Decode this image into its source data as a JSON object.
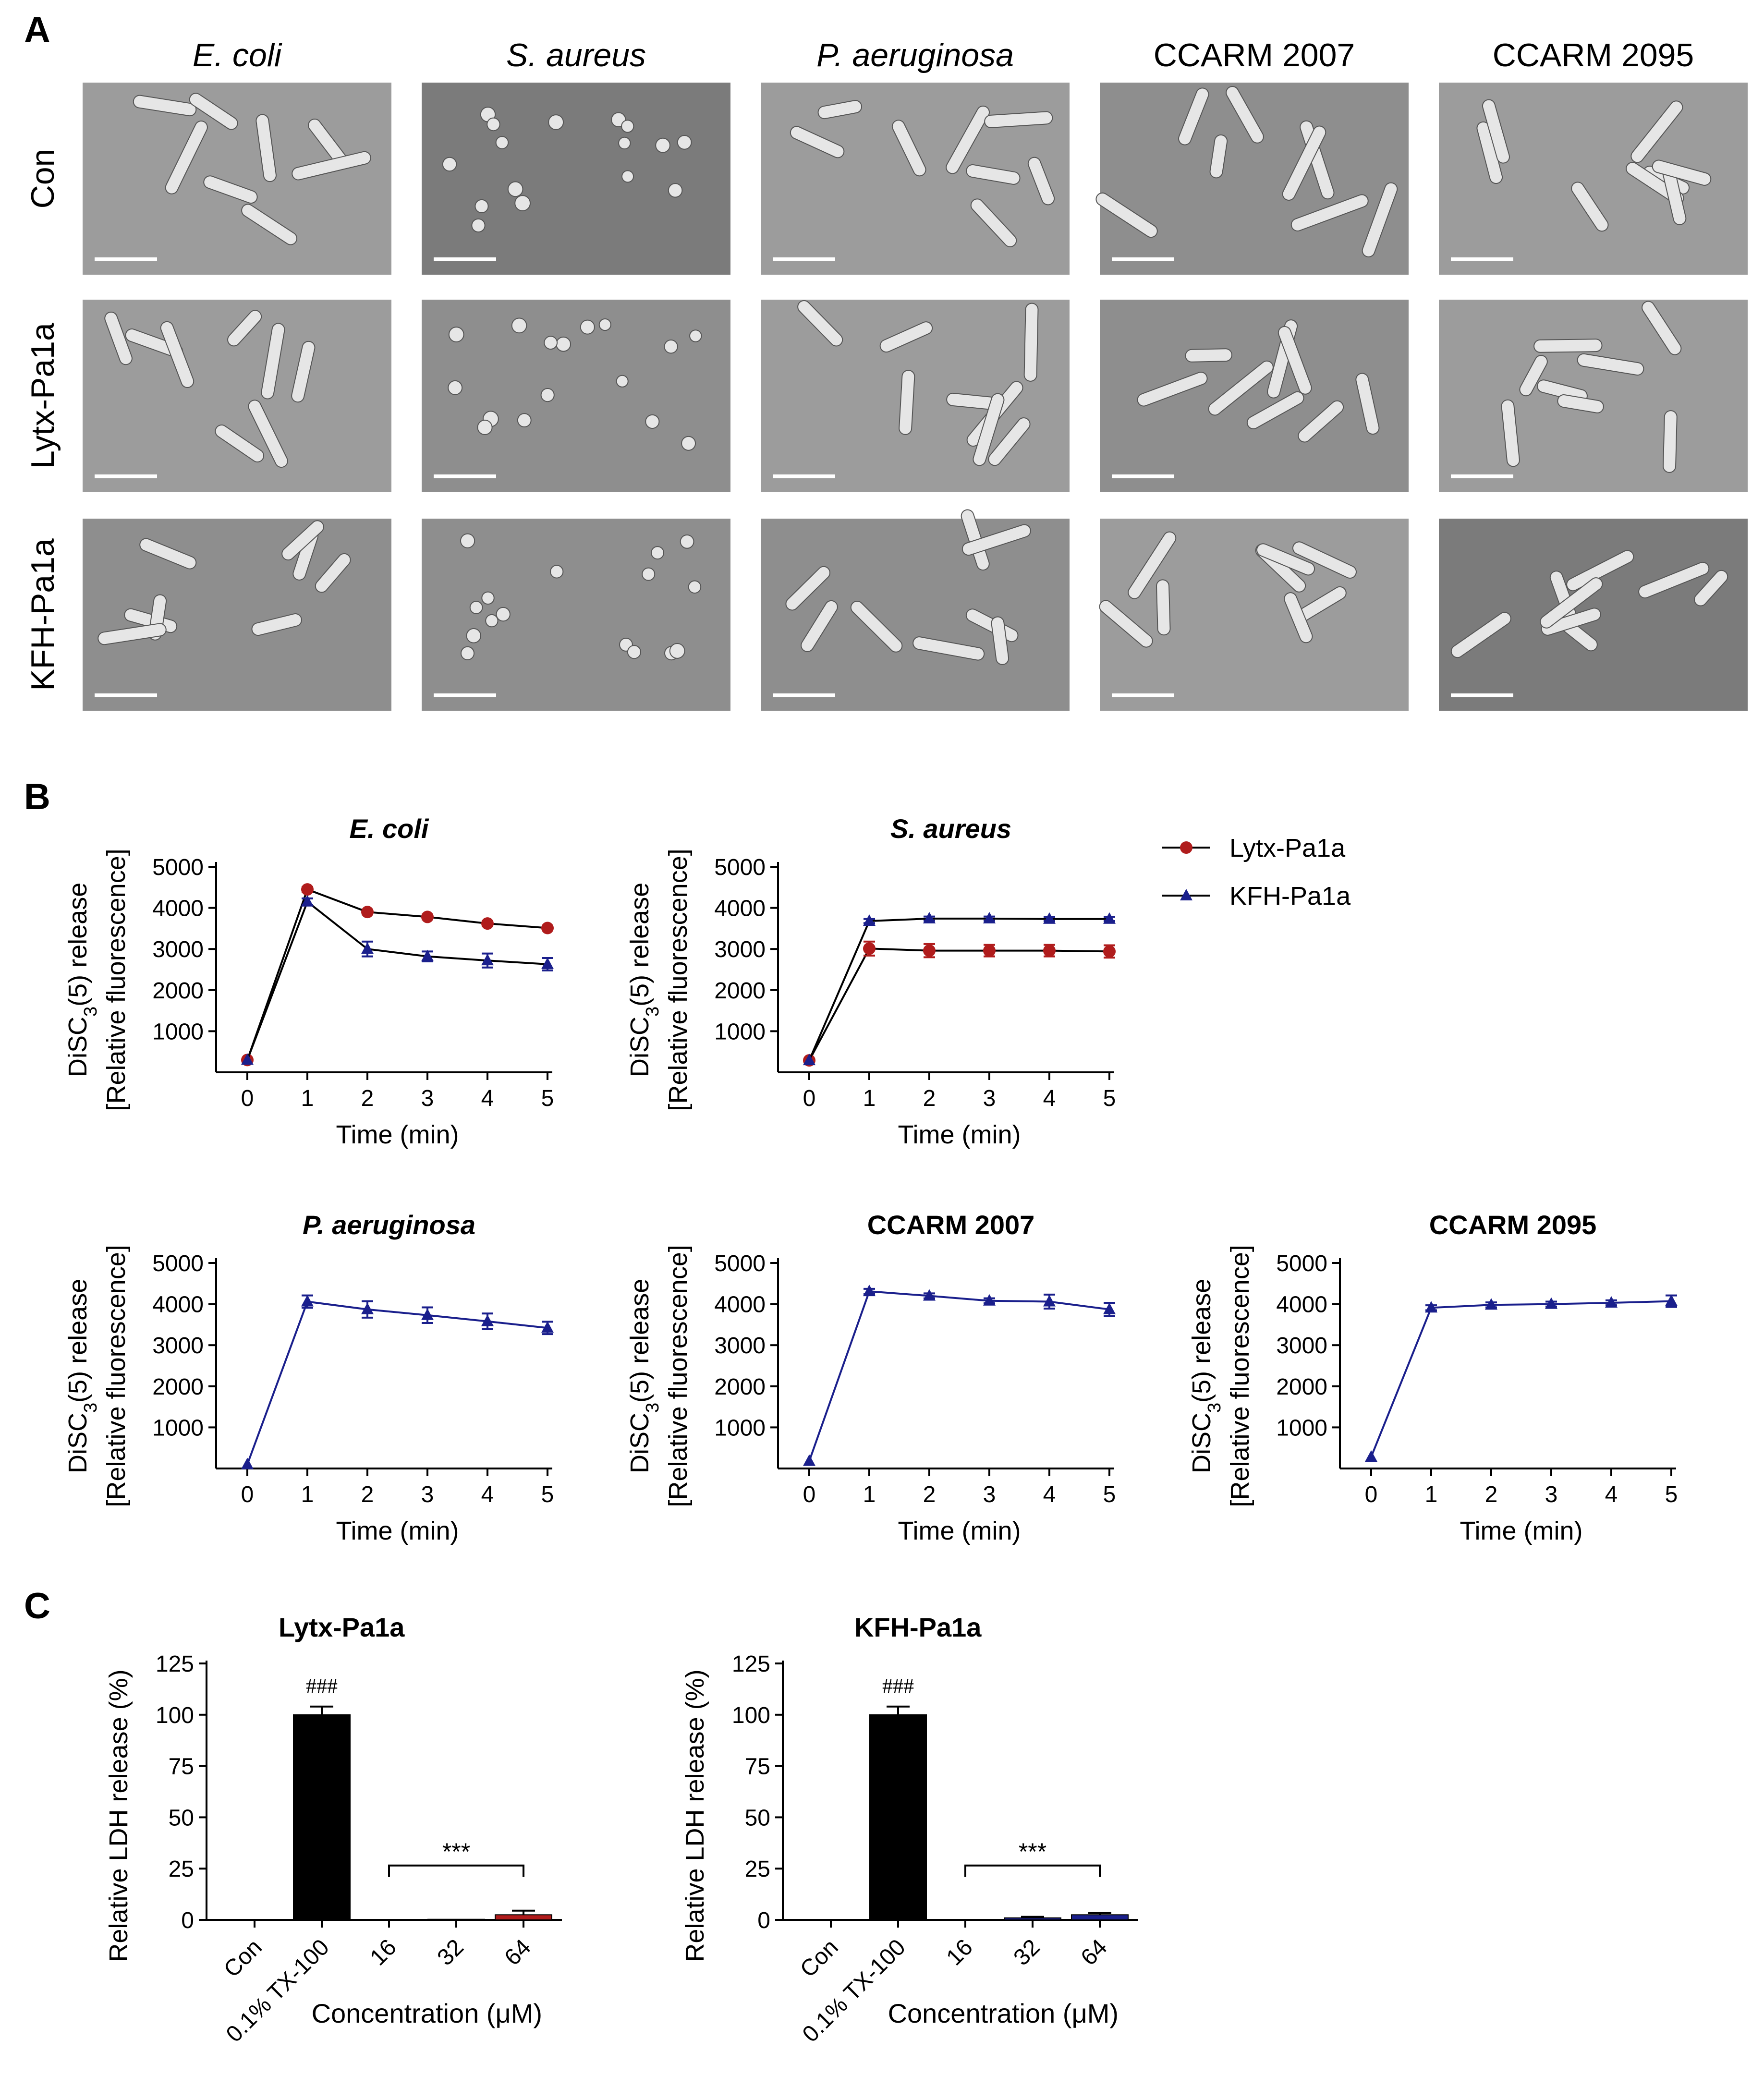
{
  "panel_letters": {
    "a": "A",
    "b": "B",
    "c": "C"
  },
  "colors": {
    "lytx": "#b01c1c",
    "kfh": "#1a1f8c",
    "black": "#000000",
    "sem_light": "#9c9c9c",
    "sem_mid": "#8e8e8e",
    "sem_dark": "#7b7b7b",
    "cell": "#e6e6e6",
    "scale_bar": "#ffffff"
  },
  "panel_a": {
    "columns": [
      {
        "label": "E. coli",
        "italic": true
      },
      {
        "label": "S. aureus",
        "italic": true
      },
      {
        "label": "P. aeruginosa",
        "italic": true
      },
      {
        "label": "CCARM 2007",
        "italic": false
      },
      {
        "label": "CCARM 2095",
        "italic": false
      }
    ],
    "rows": [
      "Con",
      "Lytx-Pa1a",
      "KFH-Pa1a"
    ],
    "tile_tone": [
      [
        "sem_light",
        "sem_dark",
        "sem_light",
        "sem_mid",
        "sem_light"
      ],
      [
        "sem_light",
        "sem_mid",
        "sem_light",
        "sem_mid",
        "sem_light"
      ],
      [
        "sem_mid",
        "sem_mid",
        "sem_mid",
        "sem_light",
        "sem_dark"
      ]
    ],
    "morphology": [
      [
        "rod",
        "coccus",
        "rod",
        "rod",
        "rod"
      ],
      [
        "rod",
        "coccus",
        "rod",
        "rod",
        "rod"
      ],
      [
        "rod",
        "coccus",
        "rod",
        "rod",
        "rod"
      ]
    ]
  },
  "legend": [
    {
      "label": "Lytx-Pa1a",
      "marker": "circle",
      "color_key": "lytx"
    },
    {
      "label": "KFH-Pa1a",
      "marker": "triangle",
      "color_key": "kfh"
    }
  ],
  "chart_data": [
    {
      "type": "line",
      "title": "E. coli",
      "italic_title": true,
      "xlabel": "Time (min)",
      "ylabel_line1": "DiSC3(5) release",
      "ylabel_line2": "[Relative fluorescence]",
      "x": [
        0,
        1,
        2,
        3,
        4,
        5
      ],
      "xlim": [
        0,
        5
      ],
      "ylim": [
        0,
        5000
      ],
      "yticks": [
        1000,
        2000,
        3000,
        4000,
        5000
      ],
      "series": [
        {
          "name": "Lytx-Pa1a",
          "marker": "circle",
          "color_key": "lytx",
          "values": [
            300,
            4450,
            3900,
            3780,
            3620,
            3510
          ],
          "errors": [
            0,
            60,
            60,
            60,
            60,
            60
          ]
        },
        {
          "name": "KFH-Pa1a",
          "marker": "triangle",
          "color_key": "kfh",
          "values": [
            300,
            4150,
            3000,
            2820,
            2720,
            2630
          ],
          "errors": [
            0,
            80,
            180,
            120,
            170,
            150
          ]
        }
      ]
    },
    {
      "type": "line",
      "title": "S. aureus",
      "italic_title": true,
      "xlabel": "Time (min)",
      "ylabel_line1": "DiSC3(5) release",
      "ylabel_line2": "[Relative fluorescence]",
      "x": [
        0,
        1,
        2,
        3,
        4,
        5
      ],
      "xlim": [
        0,
        5
      ],
      "ylim": [
        0,
        5000
      ],
      "yticks": [
        1000,
        2000,
        3000,
        4000,
        5000
      ],
      "series": [
        {
          "name": "Lytx-Pa1a",
          "marker": "circle",
          "color_key": "lytx",
          "values": [
            290,
            3010,
            2960,
            2960,
            2960,
            2940
          ],
          "errors": [
            0,
            170,
            160,
            140,
            140,
            150
          ]
        },
        {
          "name": "KFH-Pa1a",
          "marker": "triangle",
          "color_key": "kfh",
          "values": [
            290,
            3680,
            3740,
            3740,
            3730,
            3730
          ],
          "errors": [
            0,
            50,
            50,
            50,
            50,
            50
          ]
        }
      ]
    },
    {
      "type": "line",
      "title": "P. aeruginosa",
      "italic_title": true,
      "xlabel": "Time (min)",
      "ylabel_line1": "DiSC3(5) release",
      "ylabel_line2": "[Relative fluorescence]",
      "x": [
        0,
        1,
        2,
        3,
        4,
        5
      ],
      "xlim": [
        0,
        5
      ],
      "ylim": [
        0,
        5000
      ],
      "yticks": [
        1000,
        2000,
        3000,
        4000,
        5000
      ],
      "series": [
        {
          "name": "KFH-Pa1a",
          "marker": "triangle",
          "color_key": "kfh",
          "values": [
            100,
            4060,
            3870,
            3730,
            3580,
            3420
          ],
          "errors": [
            0,
            150,
            200,
            190,
            190,
            150
          ]
        }
      ]
    },
    {
      "type": "line",
      "title": "CCARM 2007",
      "italic_title": false,
      "xlabel": "Time (min)",
      "ylabel_line1": "DiSC3(5) release",
      "ylabel_line2": "[Relative fluorescence]",
      "x": [
        0,
        1,
        2,
        3,
        4,
        5
      ],
      "xlim": [
        0,
        5
      ],
      "ylim": [
        0,
        5000
      ],
      "yticks": [
        1000,
        2000,
        3000,
        4000,
        5000
      ],
      "series": [
        {
          "name": "KFH-Pa1a",
          "marker": "triangle",
          "color_key": "kfh",
          "values": [
            180,
            4310,
            4200,
            4080,
            4060,
            3870
          ],
          "errors": [
            0,
            60,
            60,
            60,
            170,
            160
          ]
        }
      ]
    },
    {
      "type": "line",
      "title": "CCARM 2095",
      "italic_title": false,
      "xlabel": "Time (min)",
      "ylabel_line1": "DiSC3(5) release",
      "ylabel_line2": "[Relative fluorescence]",
      "x": [
        0,
        1,
        2,
        3,
        4,
        5
      ],
      "xlim": [
        0,
        5
      ],
      "ylim": [
        0,
        5000
      ],
      "yticks": [
        1000,
        2000,
        3000,
        4000,
        5000
      ],
      "series": [
        {
          "name": "KFH-Pa1a",
          "marker": "triangle",
          "color_key": "kfh",
          "values": [
            280,
            3910,
            3980,
            4000,
            4030,
            4070
          ],
          "errors": [
            0,
            60,
            60,
            60,
            60,
            140
          ]
        }
      ]
    },
    {
      "type": "bar",
      "title": "Lytx-Pa1a",
      "xlabel": "Concentration (μM)",
      "ylabel": "Relative LDH release (%)",
      "categories": [
        "Con",
        "0.1% TX-100",
        "16",
        "32",
        "64"
      ],
      "values": [
        0,
        100,
        0.2,
        0.3,
        2.5
      ],
      "errors": [
        0,
        4,
        0,
        0,
        2
      ],
      "bar_color_keys": [
        "black",
        "black",
        "lytx",
        "lytx",
        "lytx"
      ],
      "ylim": [
        0,
        125
      ],
      "yticks": [
        0,
        25,
        50,
        75,
        100,
        125
      ],
      "annotations": {
        "hash": "###",
        "stars": "***"
      }
    },
    {
      "type": "bar",
      "title": "KFH-Pa1a",
      "xlabel": "Concentration (μM)",
      "ylabel": "Relative LDH release (%)",
      "categories": [
        "Con",
        "0.1% TX-100",
        "16",
        "32",
        "64"
      ],
      "values": [
        0,
        100,
        0.2,
        1,
        2.5
      ],
      "errors": [
        0,
        4,
        0,
        0.5,
        0.8
      ],
      "bar_color_keys": [
        "black",
        "black",
        "kfh",
        "kfh",
        "kfh"
      ],
      "ylim": [
        0,
        125
      ],
      "yticks": [
        0,
        25,
        50,
        75,
        100,
        125
      ],
      "annotations": {
        "hash": "###",
        "stars": "***"
      }
    }
  ]
}
